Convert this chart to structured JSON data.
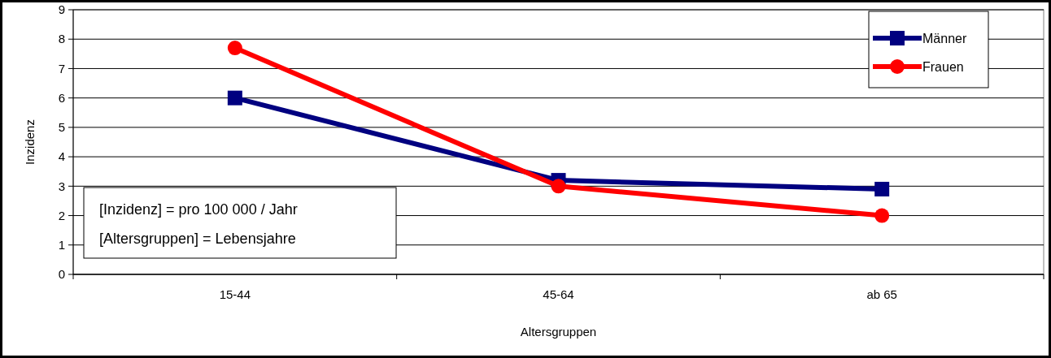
{
  "chart_data": {
    "type": "line",
    "xlabel": "Altersgruppen",
    "ylabel": "Inzidenz",
    "categories": [
      "15-44",
      "45-64",
      "ab 65"
    ],
    "series": [
      {
        "name": "Männer",
        "color": "#000080",
        "values": [
          6.0,
          3.2,
          2.9
        ],
        "marker": "square"
      },
      {
        "name": "Frauen",
        "color": "#ff0000",
        "values": [
          7.7,
          3.0,
          2.0
        ],
        "marker": "circle"
      }
    ],
    "ylim": [
      0,
      9
    ],
    "yticks": [
      0,
      1,
      2,
      3,
      4,
      5,
      6,
      7,
      8,
      9
    ],
    "grid": "y",
    "legend": "top right",
    "line_style": "solid",
    "annotations": [
      "[Inzidenz] = pro 100 000 / Jahr",
      "[Altersgruppen] = Lebensjahre"
    ]
  }
}
